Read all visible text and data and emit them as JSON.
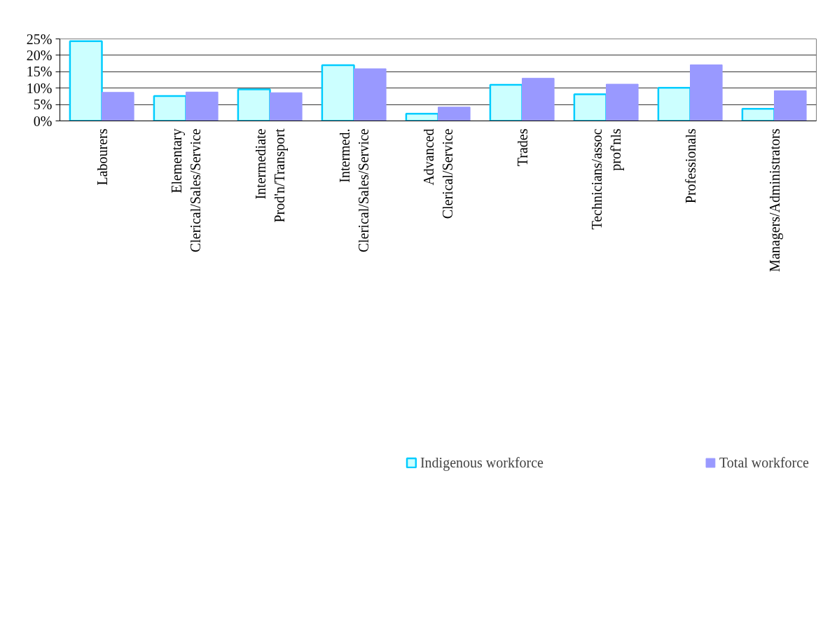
{
  "chart_data": {
    "type": "bar",
    "categories": [
      "Labourers",
      "Elementary Clerical/Sales/Service",
      "Intermediate Prod'n/Transport",
      "Intermed. Clerical/Sales/Service",
      "Advanced Clerical/Service",
      "Trades",
      "Technicians/assoc prof'nls",
      "Professionals",
      "Managers/Administrators"
    ],
    "series": [
      {
        "name": "Indigenous workforce",
        "color": "#ccffff",
        "values": [
          24.3,
          7.6,
          9.6,
          17.0,
          2.2,
          11.0,
          8.1,
          10.1,
          3.7
        ]
      },
      {
        "name": "Total workforce",
        "color": "#9999ff",
        "values": [
          8.7,
          8.8,
          8.6,
          15.9,
          4.2,
          13.0,
          11.2,
          17.1,
          9.2
        ]
      }
    ],
    "ylim": [
      0,
      25
    ],
    "yticks": [
      {
        "value": 0,
        "label": "0%"
      },
      {
        "value": 5,
        "label": "5%"
      },
      {
        "value": 10,
        "label": "10%"
      },
      {
        "value": 15,
        "label": "15%"
      },
      {
        "value": 20,
        "label": "20%"
      },
      {
        "value": 25,
        "label": "25%"
      }
    ],
    "grid": "y",
    "legend": "bottom"
  }
}
